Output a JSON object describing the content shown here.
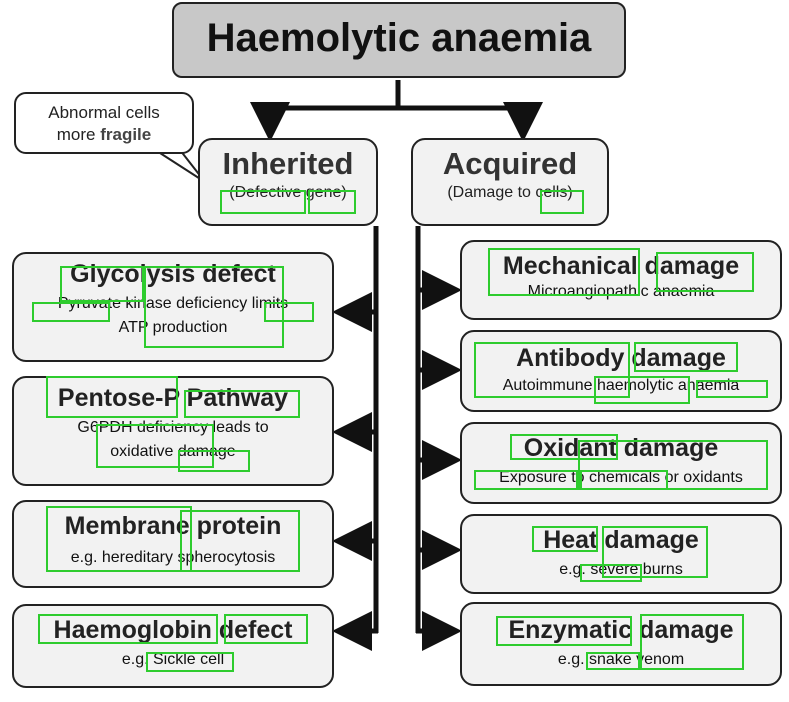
{
  "title": "Haemolytic anaemia",
  "callout": {
    "line1": "Abnormal cells",
    "line2_plain": "more ",
    "line2_bold": "fragile"
  },
  "inherited": {
    "title": "Inherited",
    "subtitle": "(Defective gene)"
  },
  "acquired": {
    "title": "Acquired",
    "subtitle": "(Damage to cells)"
  },
  "inherited_items": [
    {
      "title": "Glycolysis defect",
      "desc": [
        "Pyruvate kinase deficiency limits",
        "ATP production"
      ]
    },
    {
      "title": "Pentose-P Pathway",
      "desc": [
        "G6PDH deficiency leads to",
        "oxidative damage"
      ]
    },
    {
      "title": "Membrane protein",
      "desc": [
        "e.g. hereditary spherocytosis"
      ]
    },
    {
      "title": "Haemoglobin defect",
      "desc": [
        "e.g. Sickle cell"
      ]
    }
  ],
  "acquired_items": [
    {
      "title": "Mechanical damage",
      "desc": [
        "Microangiopathic anaemia"
      ]
    },
    {
      "title": "Antibody damage",
      "desc": [
        "Autoimmune haemolytic anaemia"
      ]
    },
    {
      "title": "Oxidant damage",
      "desc": [
        "Exposure to chemicals or oxidants"
      ]
    },
    {
      "title": "Heat damage",
      "desc": [
        "e.g. severe burns"
      ]
    },
    {
      "title": "Enzymatic damage",
      "desc": [
        "e.g. snake venom"
      ]
    }
  ],
  "colors": {
    "box_fill": "#f2f2f2",
    "title_fill": "#c8c8c8",
    "highlight": "#2ecc2e",
    "line": "#111111"
  }
}
